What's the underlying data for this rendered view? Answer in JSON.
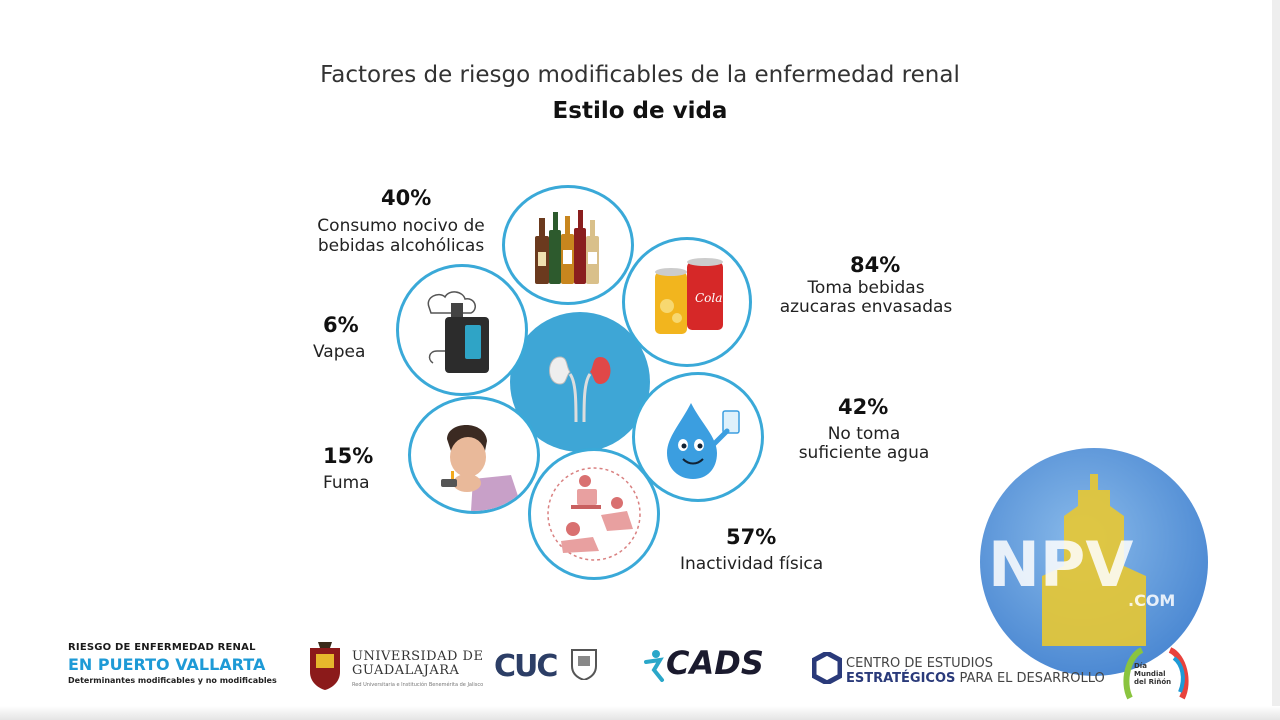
{
  "title": "Factores de riesgo modificables de la enfermedad renal",
  "subtitle": "Estilo de vida",
  "factors": {
    "alcohol": {
      "percent": "40%",
      "label_line1": "Consumo nocivo de",
      "label_line2": "bebidas alcohólicas",
      "icon": "liquor-bottles-icon"
    },
    "sugary": {
      "percent": "84%",
      "label_line1": "Toma bebidas",
      "label_line2": "azucaras envasadas",
      "icon": "soda-cans-icon",
      "can_text": "Cola"
    },
    "vape": {
      "percent": "6%",
      "label": "Vapea",
      "icon": "vape-device-icon"
    },
    "water": {
      "percent": "42%",
      "label_line1": "No toma",
      "label_line2": "suficiente agua",
      "icon": "water-drop-icon"
    },
    "smoke": {
      "percent": "15%",
      "label": "Fuma",
      "icon": "smoking-person-icon"
    },
    "inactivity": {
      "percent": "57%",
      "label": "Inactividad física",
      "icon": "sedentary-people-icon"
    }
  },
  "center_icon": "kidneys-icon",
  "colors": {
    "ring": "#3aa9d8",
    "center": "#3ea6d6",
    "accent_blue": "#1e9ad6"
  },
  "footer": {
    "project_line1": "RIESGO DE ENFERMEDAD RENAL",
    "project_line2": "EN PUERTO VALLARTA",
    "project_line3": "Determinantes modificables y no modificables",
    "udg_line1": "UNIVERSIDAD DE",
    "udg_line2": "GUADALAJARA",
    "udg_sub": "Red Universitaria e Institución Benemérita de Jalisco",
    "cuc_text": "CUC",
    "cads_text": "CADS",
    "ceed_line1": "CENTRO DE ESTUDIOS",
    "ceed_line2_bold": "ESTRATÉGICOS",
    "ceed_line2_rest": " PARA EL DESARROLLO",
    "mundial_line1": "Día",
    "mundial_line2": "Mundial",
    "mundial_line3": "del Riñón"
  },
  "watermark": {
    "text": "NPV",
    "suffix": ".COM"
  }
}
